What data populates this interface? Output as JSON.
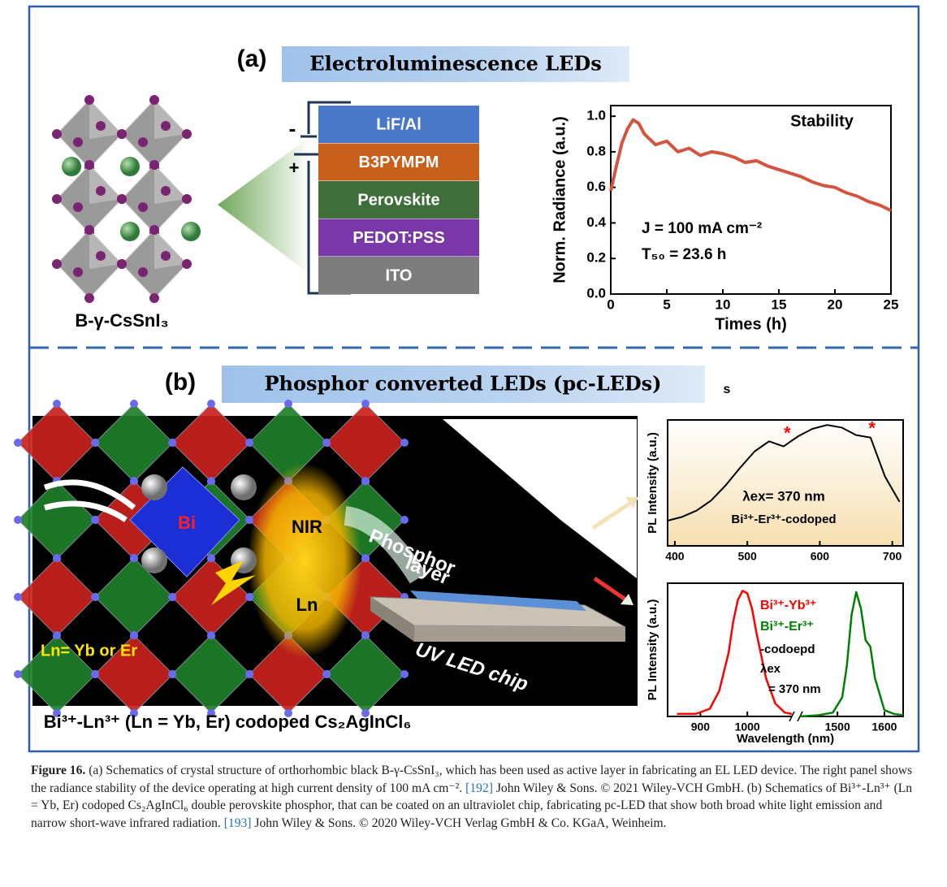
{
  "figure": {
    "panel_a": {
      "label": "(a)",
      "title": "Electroluminescence LEDs",
      "crystal_label": "B-γ-CsSnI₃",
      "stack_layers": [
        "LiF/Al",
        "B3PYMPM",
        "Perovskite",
        "PEDOT:PSS",
        "ITO"
      ],
      "polarity": [
        "-",
        "+"
      ]
    },
    "panel_b": {
      "label": "(b)",
      "title": "Phosphor converted LEDs (pc-LEDs)",
      "stray_mark": "s",
      "crystal_labels": {
        "center": "Bi",
        "emission": "NIR",
        "dopant": "Ln",
        "note": "Ln= Yb or Er"
      },
      "phosphor_label": [
        "Phosphor",
        "layer"
      ],
      "chip_label": "UV LED chip",
      "material_label": "Bi³⁺-Ln³⁺ (Ln =  Yb, Er) codoped Cs₂AgInCl₆"
    }
  },
  "chart_data": [
    {
      "type": "line",
      "ylabel": "Norm. Radiance (a.u.)",
      "xlabel": "Times (h)",
      "annotations": [
        "Stability",
        "J = 100 mA cm⁻²",
        "T₅₀ = 23.6 h"
      ],
      "x": [
        0,
        0.5,
        1,
        1.5,
        2,
        2.5,
        3,
        4,
        5,
        6,
        7,
        8,
        9,
        10,
        11,
        12,
        13,
        14,
        15,
        16,
        17,
        18,
        19,
        20,
        21,
        22,
        23,
        24,
        25
      ],
      "values": [
        0.58,
        0.72,
        0.85,
        0.93,
        0.98,
        0.96,
        0.9,
        0.84,
        0.86,
        0.8,
        0.82,
        0.78,
        0.8,
        0.79,
        0.77,
        0.74,
        0.75,
        0.72,
        0.7,
        0.68,
        0.66,
        0.63,
        0.61,
        0.6,
        0.57,
        0.55,
        0.52,
        0.5,
        0.47
      ],
      "color": "#d4553f",
      "xlim": [
        0,
        25
      ],
      "xticks": [
        0,
        5,
        10,
        15,
        20,
        25
      ],
      "ylim": [
        0,
        1.06
      ],
      "yticks": [
        {
          "value": 0,
          "label": "0.0"
        },
        0.2,
        0.4,
        0.6,
        0.8,
        {
          "value": 1,
          "label": "1.0"
        }
      ]
    },
    {
      "type": "line",
      "ylabel": "PL Intensity (a.u.)",
      "annotations": [
        "λex= 370 nm",
        "Bi³⁺-Er³⁺-codoped"
      ],
      "x": [
        390,
        410,
        430,
        450,
        470,
        490,
        510,
        530,
        550,
        570,
        590,
        610,
        630,
        650,
        670,
        690,
        710
      ],
      "values": [
        0.2,
        0.23,
        0.28,
        0.36,
        0.48,
        0.62,
        0.75,
        0.83,
        0.79,
        0.87,
        0.93,
        0.96,
        0.94,
        0.88,
        0.86,
        0.55,
        0.35
      ],
      "color": "#000000",
      "highlights": [
        {
          "x": 555,
          "value": 0.82,
          "label": "*"
        },
        {
          "x": 672,
          "value": 0.86,
          "label": "*"
        }
      ],
      "xlim": [
        390,
        715
      ],
      "xticks": [
        400,
        500,
        600,
        700
      ],
      "ylim": [
        0,
        1
      ]
    },
    {
      "type": "line",
      "ylabel": "PL Intensity (a.u.)",
      "xlabel": "Wavelength (nm)",
      "annotations": [
        "-codoepd",
        "λex",
        "= 370 nm"
      ],
      "series": [
        {
          "name": "Bi³⁺-Yb³⁺",
          "color": "#ff0000",
          "x": [
            850,
            890,
            920,
            940,
            960,
            970,
            980,
            990,
            1000,
            1010,
            1020,
            1040,
            1060,
            1080,
            1095
          ],
          "values": [
            0.02,
            0.02,
            0.06,
            0.2,
            0.5,
            0.75,
            0.92,
            0.99,
            0.97,
            0.85,
            0.65,
            0.3,
            0.1,
            0.03,
            0.02
          ]
        },
        {
          "name": "Bi³⁺-Er³⁺",
          "color": "#008000",
          "x": [
            1420,
            1460,
            1490,
            1510,
            1520,
            1530,
            1540,
            1550,
            1560,
            1570,
            1580,
            1600,
            1620,
            1640
          ],
          "values": [
            0.0,
            0.01,
            0.03,
            0.15,
            0.4,
            0.8,
            0.98,
            0.85,
            0.6,
            0.55,
            0.3,
            0.05,
            0.02,
            0.01
          ]
        }
      ],
      "xlim": [
        830,
        1640
      ],
      "axis_break": [
        1095,
        1420
      ],
      "xticks": [
        900,
        1000,
        1500,
        1600
      ],
      "ylim": [
        0,
        1.05
      ]
    }
  ],
  "caption": {
    "label": "Figure 16.",
    "part1": "(a) Schematics of crystal structure of orthorhombic black B-γ-CsSnI₃, which has been used as active layer in fabricating an EL LED device. The right panel shows the radiance stability of the device operating at high current density of 100 mA cm⁻².",
    "ref1": "[192]",
    "part2": "John Wiley & Sons. © 2021 Wiley-VCH GmbH. (b) Schematics of Bi³⁺-Ln³⁺ (Ln = Yb, Er) codoped Cs₂AgInCl₆ double perovskite phosphor, that can be coated on an ultraviolet chip, fabricating pc-LED that show both broad white light emission and narrow short-wave infrared radiation.",
    "ref2": "[193]",
    "part3": "John Wiley & Sons. © 2020 Wiley-VCH Verlag GmbH & Co. KGaA, Weinheim."
  }
}
